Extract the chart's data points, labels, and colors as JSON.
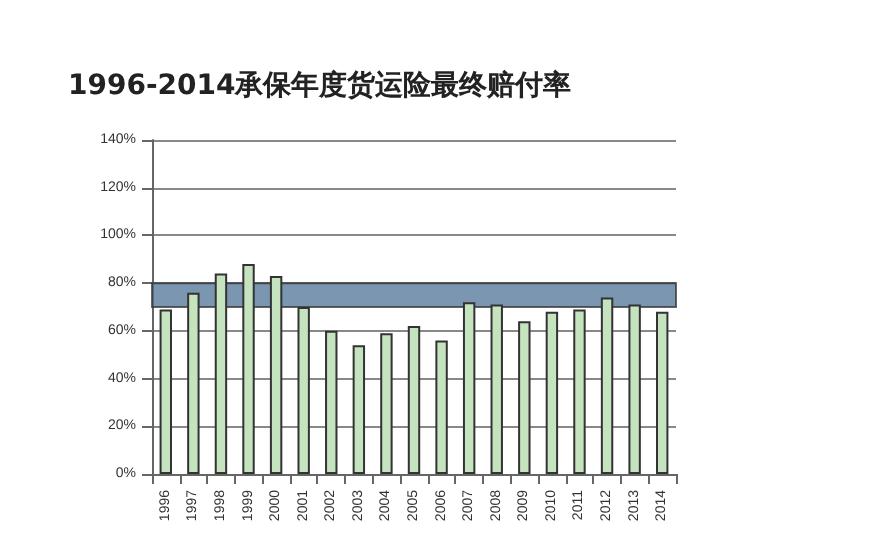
{
  "chart_data": {
    "type": "bar",
    "title": "1996-2014承保年度货运险最终赔付率",
    "categories": [
      "1996",
      "1997",
      "1998",
      "1999",
      "2000",
      "2001",
      "2002",
      "2003",
      "2004",
      "2005",
      "2006",
      "2007",
      "2008",
      "2009",
      "2010",
      "2011",
      "2012",
      "2013",
      "2014"
    ],
    "values": [
      69,
      76,
      84,
      88,
      83,
      70,
      60,
      54,
      59,
      62,
      56,
      72,
      71,
      64,
      68,
      69,
      74,
      71,
      68
    ],
    "color": "#c4e3be",
    "ylim": [
      0,
      140
    ],
    "yticks": [
      {
        "value": 0,
        "label": "0%"
      },
      {
        "value": 20,
        "label": "20%"
      },
      {
        "value": 40,
        "label": "40%"
      },
      {
        "value": 60,
        "label": "60%"
      },
      {
        "value": 80,
        "label": "80%"
      },
      {
        "value": 100,
        "label": "100%"
      },
      {
        "value": 120,
        "label": "120%"
      },
      {
        "value": 140,
        "label": "140%"
      }
    ],
    "grid": "y",
    "bands": [
      {
        "axis": "y",
        "from": 70,
        "to": 80,
        "color": "#4f7396"
      }
    ]
  }
}
